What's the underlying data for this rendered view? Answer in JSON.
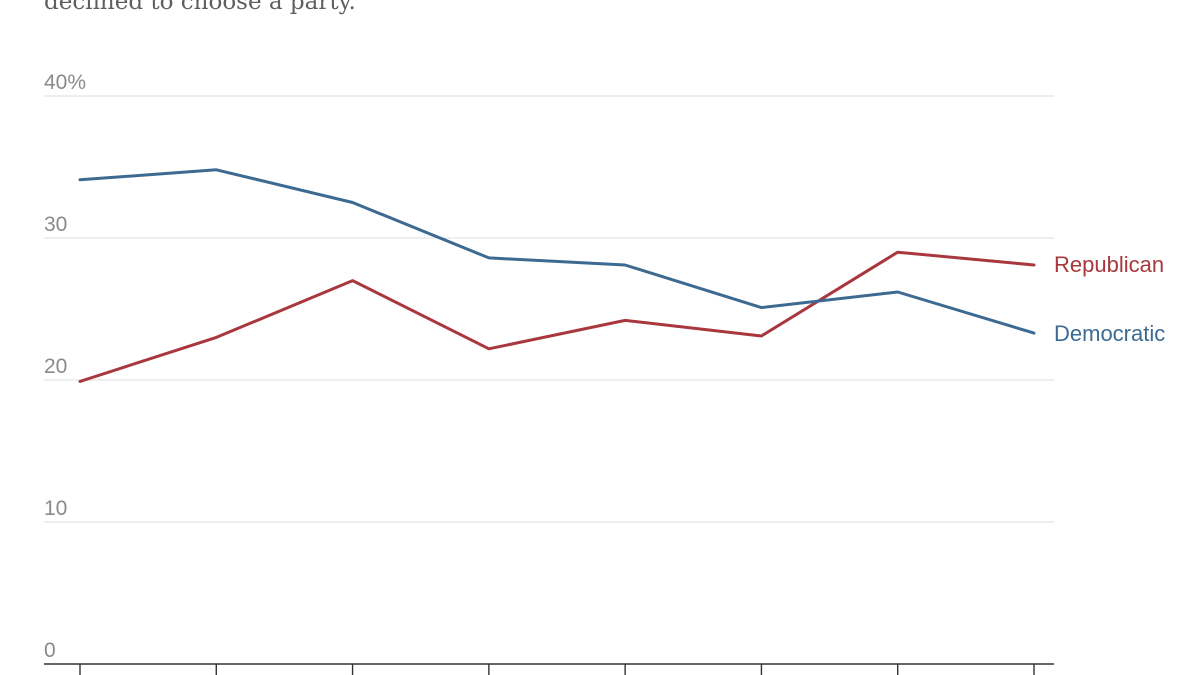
{
  "subtitle": "declined to choose a party.",
  "colors": {
    "republican": "#a8383d",
    "democratic": "#3d6a91",
    "grid": "#e3e3e3",
    "axis": "#333333",
    "tick_label": "#8a8a8a",
    "subtitle": "#5f5f5f"
  },
  "chart_data": {
    "type": "line",
    "title": "",
    "subtitle": "declined to choose a party.",
    "xlabel": "",
    "ylabel": "",
    "x": [
      1,
      2,
      3,
      4,
      5,
      6,
      7,
      8
    ],
    "ylim": [
      0,
      40
    ],
    "y_ticks": [
      {
        "value": 40,
        "label": "40%"
      },
      {
        "value": 30,
        "label": "30"
      },
      {
        "value": 20,
        "label": "20"
      },
      {
        "value": 10,
        "label": "10"
      },
      {
        "value": 0,
        "label": "0"
      }
    ],
    "grid": true,
    "legend": "direct labels at right end of lines",
    "series": [
      {
        "name": "Republican",
        "color": "#a8383d",
        "values": [
          19.9,
          23.0,
          27.0,
          22.2,
          24.2,
          23.1,
          29.0,
          28.1
        ]
      },
      {
        "name": "Democratic",
        "color": "#3d6a91",
        "values": [
          34.1,
          34.8,
          32.5,
          28.6,
          28.1,
          25.1,
          26.2,
          23.3
        ]
      }
    ]
  }
}
